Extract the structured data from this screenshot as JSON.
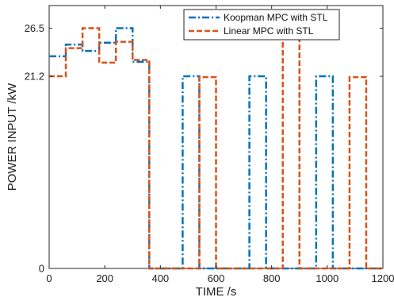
{
  "chart_data": {
    "type": "line",
    "title": "",
    "xlabel": "TIME /s",
    "ylabel": "POWER INPUT /kW",
    "xlim": [
      0,
      1200
    ],
    "ylim": [
      0,
      29
    ],
    "x_ticks": [
      0,
      200,
      400,
      600,
      800,
      1000,
      1200
    ],
    "y_ticks": [
      0,
      21.2,
      26.5
    ],
    "x_tick_labels": [
      "0",
      "200",
      "400",
      "600",
      "800",
      "1000",
      "1200"
    ],
    "y_tick_labels": [
      "0",
      "21.2",
      "26.5"
    ],
    "grid": false,
    "legend_position": "top-right",
    "series": [
      {
        "name": "Koopman MPC with STL",
        "color": "#0072BD",
        "style": "dash-dot",
        "x": [
          0,
          60,
          60,
          120,
          120,
          180,
          180,
          240,
          240,
          300,
          300,
          360,
          360,
          480,
          480,
          540,
          540,
          720,
          720,
          780,
          780,
          960,
          960,
          1020,
          1020,
          1200
        ],
        "y": [
          23.4,
          23.4,
          24.7,
          24.7,
          24.0,
          24.0,
          24.9,
          24.9,
          26.5,
          26.5,
          22.8,
          22.8,
          0,
          0,
          21.2,
          21.2,
          0,
          0,
          21.2,
          21.2,
          0,
          0,
          21.2,
          21.2,
          0,
          0
        ]
      },
      {
        "name": "Linear MPC with STL",
        "color": "#D95319",
        "style": "dash",
        "x": [
          0,
          60,
          60,
          120,
          120,
          180,
          180,
          240,
          240,
          300,
          300,
          360,
          360,
          540,
          540,
          600,
          600,
          840,
          840,
          900,
          900,
          1080,
          1080,
          1140,
          1140,
          1200
        ],
        "y": [
          21.2,
          21.2,
          24.3,
          24.3,
          26.5,
          26.5,
          22.7,
          22.7,
          25.0,
          25.0,
          23.0,
          23.0,
          0,
          0,
          21.1,
          21.1,
          0,
          0,
          25.8,
          25.8,
          0,
          0,
          21.1,
          21.1,
          0,
          0
        ]
      }
    ]
  }
}
